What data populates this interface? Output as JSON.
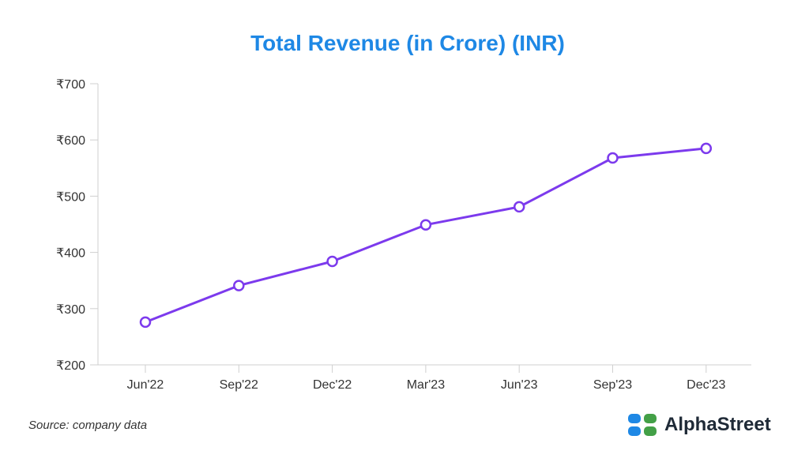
{
  "chart_data": {
    "type": "line",
    "title": "Total Revenue (in Crore) (INR)",
    "title_color": "#1e88e5",
    "categories": [
      "Jun'22",
      "Sep'22",
      "Dec'22",
      "Mar'23",
      "Jun'23",
      "Sep'23",
      "Dec'23"
    ],
    "series": [
      {
        "values": [
          276,
          341,
          384,
          449,
          481,
          568,
          585
        ],
        "color": "#7c3aed"
      }
    ],
    "yticks": [
      200,
      300,
      400,
      500,
      600,
      700
    ],
    "ytick_labels": [
      "₹200",
      "₹300",
      "₹400",
      "₹500",
      "₹600",
      "₹700"
    ],
    "ylim": [
      200,
      700
    ],
    "grid": false,
    "legend": "none"
  },
  "footer": {
    "source": "Source: company data",
    "brand_name": "AlphaStreet",
    "logo_colors": [
      "#1e88e5",
      "#43a047"
    ]
  }
}
